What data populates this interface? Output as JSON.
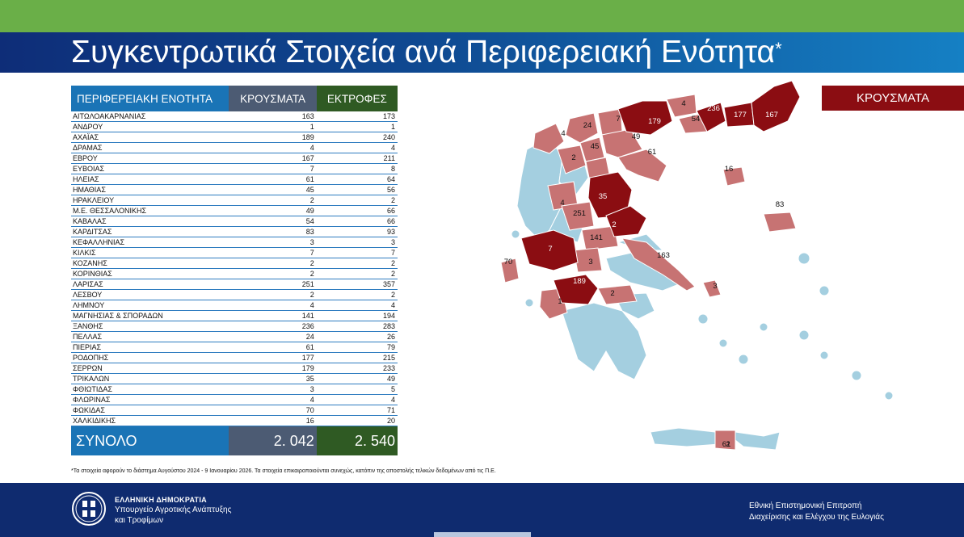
{
  "title": "Συγκεντρωτικά Στοιχεία ανά Περιφερειακή Ενότητα",
  "title_mark": "*",
  "table": {
    "headers": {
      "region": "ΠΕΡΙΦΕΡΕΙΑΚΗ ΕΝΟΤΗΤΑ",
      "cases": "ΚΡΟΥΣΜΑΤΑ",
      "farms": "ΕΚΤΡΟΦΕΣ"
    },
    "rows": [
      {
        "region": "ΑΙΤΩΛΟΑΚΑΡΝΑΝΙΑΣ",
        "cases": "163",
        "farms": "173"
      },
      {
        "region": "ΑΝΔΡΟΥ",
        "cases": "1",
        "farms": "1"
      },
      {
        "region": "ΑΧΑΪΑΣ",
        "cases": "189",
        "farms": "240"
      },
      {
        "region": "ΔΡΑΜΑΣ",
        "cases": "4",
        "farms": "4"
      },
      {
        "region": "ΕΒΡΟΥ",
        "cases": "167",
        "farms": "211"
      },
      {
        "region": "ΕΥΒΟΙΑΣ",
        "cases": "7",
        "farms": "8"
      },
      {
        "region": "ΗΛΕΙΑΣ",
        "cases": "61",
        "farms": "64"
      },
      {
        "region": "ΗΜΑΘΙΑΣ",
        "cases": "45",
        "farms": "56"
      },
      {
        "region": "ΗΡΑΚΛΕΙΟΥ",
        "cases": "2",
        "farms": "2"
      },
      {
        "region": "Μ.Ε. ΘΕΣΣΑΛΟΝΙΚΗΣ",
        "cases": "49",
        "farms": "66"
      },
      {
        "region": "ΚΑΒΑΛΑΣ",
        "cases": "54",
        "farms": "66"
      },
      {
        "region": "ΚΑΡΔΙΤΣΑΣ",
        "cases": "83",
        "farms": "93"
      },
      {
        "region": "ΚΕΦΑΛΛΗΝΙΑΣ",
        "cases": "3",
        "farms": "3"
      },
      {
        "region": "ΚΙΛΚΙΣ",
        "cases": "7",
        "farms": "7"
      },
      {
        "region": "ΚΟΖΑΝΗΣ",
        "cases": "2",
        "farms": "2"
      },
      {
        "region": "ΚΟΡΙΝΘΙΑΣ",
        "cases": "2",
        "farms": "2"
      },
      {
        "region": "ΛΑΡΙΣΑΣ",
        "cases": "251",
        "farms": "357"
      },
      {
        "region": "ΛΕΣΒΟΥ",
        "cases": "2",
        "farms": "2"
      },
      {
        "region": "ΛΗΜΝΟΥ",
        "cases": "4",
        "farms": "4"
      },
      {
        "region": "ΜΑΓΝΗΣΙΑΣ & ΣΠΟΡΑΔΩΝ",
        "cases": "141",
        "farms": "194"
      },
      {
        "region": "ΞΑΝΘΗΣ",
        "cases": "236",
        "farms": "283"
      },
      {
        "region": "ΠΕΛΛΑΣ",
        "cases": "24",
        "farms": "26"
      },
      {
        "region": "ΠΙΕΡΙΑΣ",
        "cases": "61",
        "farms": "79"
      },
      {
        "region": "ΡΟΔΟΠΗΣ",
        "cases": "177",
        "farms": "215"
      },
      {
        "region": "ΣΕΡΡΩΝ",
        "cases": "179",
        "farms": "233"
      },
      {
        "region": "ΤΡΙΚΑΛΩΝ",
        "cases": "35",
        "farms": "49"
      },
      {
        "region": "ΦΘΙΩΤΙΔΑΣ",
        "cases": "3",
        "farms": "5"
      },
      {
        "region": "ΦΛΩΡΙΝΑΣ",
        "cases": "4",
        "farms": "4"
      },
      {
        "region": "ΦΩΚΙΔΑΣ",
        "cases": "70",
        "farms": "71"
      },
      {
        "region": "ΧΑΛΚΙΔΙΚΗΣ",
        "cases": "16",
        "farms": "20"
      }
    ],
    "total": {
      "label": "ΣΥΝΟΛΟ",
      "cases": "2. 042",
      "farms": "2. 540"
    }
  },
  "legend": {
    "label": "ΚΡΟΥΣΜΑΤΑ"
  },
  "map": {
    "colors": {
      "high": "#8b0d12",
      "medium": "#c77373",
      "none": "#a4cfe0",
      "border": "#ffffff"
    },
    "labels": [
      "179",
      "4",
      "236",
      "177",
      "167",
      "7",
      "54",
      "24",
      "4",
      "45",
      "49",
      "2",
      "61",
      "16",
      "4",
      "35",
      "251",
      "83",
      "2",
      "141",
      "3",
      "163",
      "70",
      "7",
      "3",
      "189",
      "2",
      "1",
      "61",
      "2"
    ]
  },
  "footnote": "*Τα στοιχεία αφορούν το διάστημα Αυγούστου 2024 - 9 Ιανουαρίου 2026. Τα στοιχεία επικαιροποιούνται συνεχώς, κατόπιν της αποστολής τελικών δεδομένων από τις Π.Ε.",
  "footer": {
    "republic": "ΕΛΛΗΝΙΚΗ ΔΗΜΟΚΡΑΤΙΑ",
    "ministry_line1": "Υπουργείο Αγροτικής Ανάπτυξης",
    "ministry_line2": "και Τροφίμων",
    "committee_line1": "Εθνική Επιστημονική Επιτροπή",
    "committee_line2": "Διαχείρισης και Ελέγχου της Ευλογιάς"
  }
}
